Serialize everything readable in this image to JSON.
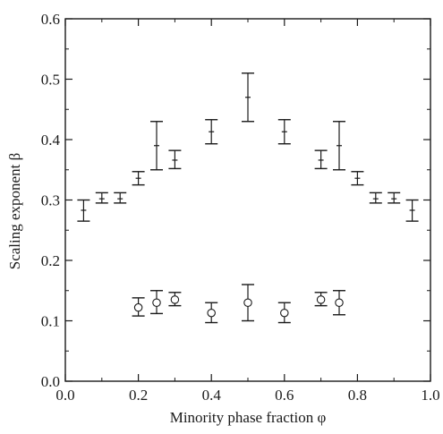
{
  "chart_data": {
    "type": "scatter",
    "xlabel": "Minority phase fraction φ",
    "ylabel": "Scaling exponent β",
    "xlim": [
      0.0,
      1.0
    ],
    "ylim": [
      0.0,
      0.6
    ],
    "xticks": [
      "0.0",
      "0.2",
      "0.4",
      "0.6",
      "0.8",
      "1.0"
    ],
    "yticks": [
      "0.0",
      "0.1",
      "0.2",
      "0.3",
      "0.4",
      "0.5",
      "0.6"
    ],
    "grid": false,
    "series": [
      {
        "marker": "cross",
        "points": [
          {
            "x": 0.05,
            "y": 0.283,
            "lo": 0.265,
            "hi": 0.3
          },
          {
            "x": 0.1,
            "y": 0.302,
            "lo": 0.295,
            "hi": 0.312
          },
          {
            "x": 0.15,
            "y": 0.302,
            "lo": 0.295,
            "hi": 0.312
          },
          {
            "x": 0.2,
            "y": 0.336,
            "lo": 0.325,
            "hi": 0.347
          },
          {
            "x": 0.25,
            "y": 0.39,
            "lo": 0.35,
            "hi": 0.43
          },
          {
            "x": 0.3,
            "y": 0.366,
            "lo": 0.352,
            "hi": 0.382
          },
          {
            "x": 0.4,
            "y": 0.413,
            "lo": 0.393,
            "hi": 0.433
          },
          {
            "x": 0.5,
            "y": 0.47,
            "lo": 0.43,
            "hi": 0.51
          },
          {
            "x": 0.6,
            "y": 0.413,
            "lo": 0.393,
            "hi": 0.433
          },
          {
            "x": 0.7,
            "y": 0.366,
            "lo": 0.352,
            "hi": 0.382
          },
          {
            "x": 0.75,
            "y": 0.39,
            "lo": 0.35,
            "hi": 0.43
          },
          {
            "x": 0.8,
            "y": 0.336,
            "lo": 0.325,
            "hi": 0.347
          },
          {
            "x": 0.85,
            "y": 0.302,
            "lo": 0.295,
            "hi": 0.312
          },
          {
            "x": 0.9,
            "y": 0.302,
            "lo": 0.295,
            "hi": 0.312
          },
          {
            "x": 0.95,
            "y": 0.283,
            "lo": 0.265,
            "hi": 0.3
          }
        ]
      },
      {
        "marker": "open-circle",
        "points": [
          {
            "x": 0.2,
            "y": 0.122,
            "lo": 0.108,
            "hi": 0.138
          },
          {
            "x": 0.25,
            "y": 0.13,
            "lo": 0.112,
            "hi": 0.15
          },
          {
            "x": 0.3,
            "y": 0.135,
            "lo": 0.125,
            "hi": 0.147
          },
          {
            "x": 0.4,
            "y": 0.113,
            "lo": 0.097,
            "hi": 0.13
          },
          {
            "x": 0.5,
            "y": 0.13,
            "lo": 0.1,
            "hi": 0.16
          },
          {
            "x": 0.6,
            "y": 0.113,
            "lo": 0.097,
            "hi": 0.13
          },
          {
            "x": 0.7,
            "y": 0.135,
            "lo": 0.125,
            "hi": 0.147
          },
          {
            "x": 0.75,
            "y": 0.13,
            "lo": 0.11,
            "hi": 0.15
          }
        ]
      }
    ]
  }
}
